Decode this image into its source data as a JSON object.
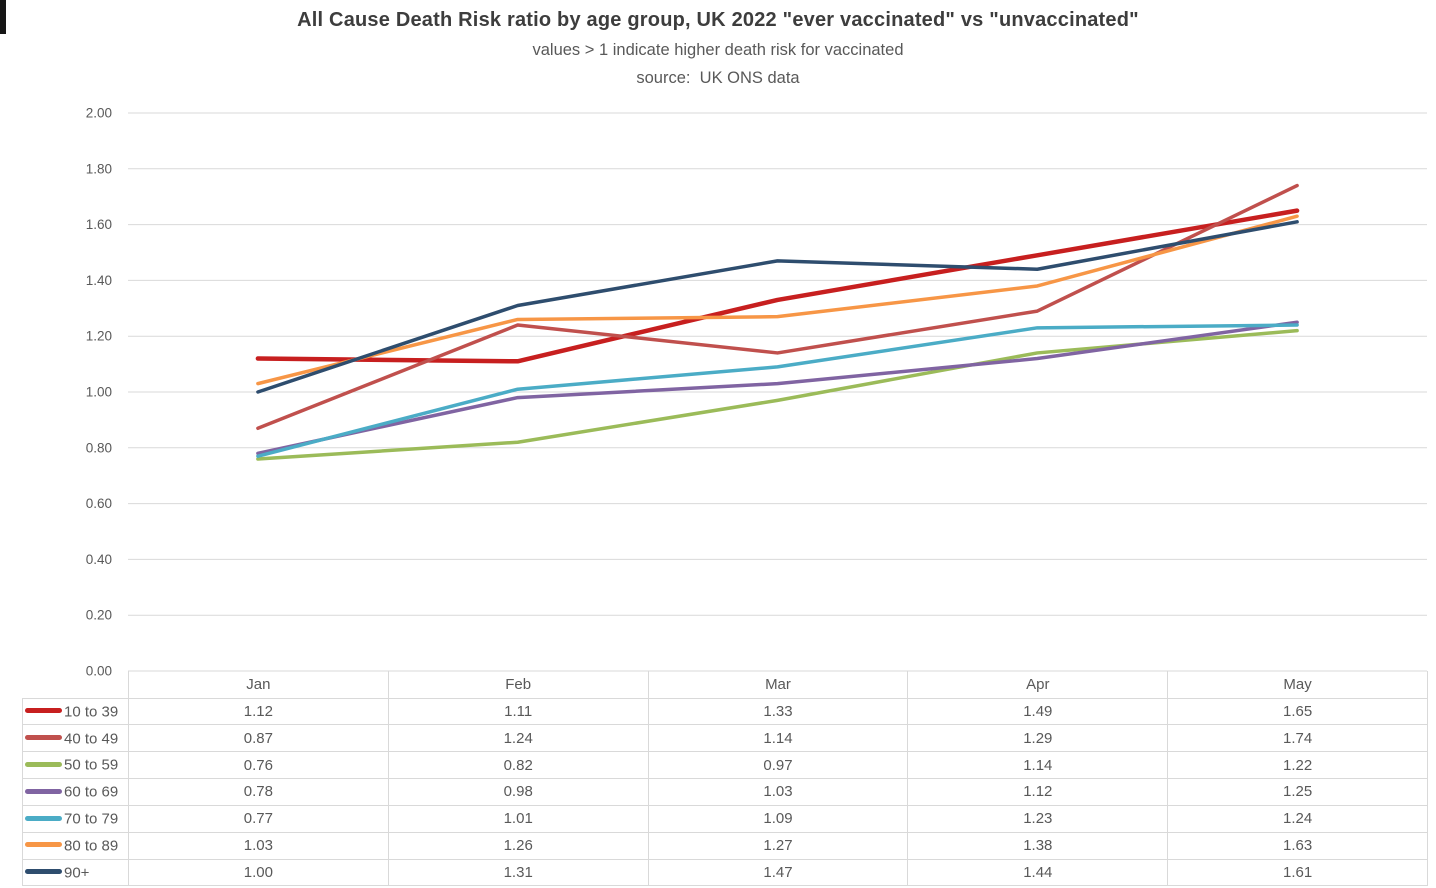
{
  "page": {
    "title": "All Cause Death Risk ratio by age group, UK 2022 \"ever vaccinated\" vs \"unvaccinated\"",
    "subtitle": "values > 1 indicate higher death risk for vaccinated",
    "source": "source:  UK ONS data"
  },
  "chart_data": {
    "type": "line",
    "title": "All Cause Death Risk ratio by age group, UK 2022 \"ever vaccinated\" vs \"unvaccinated\"",
    "subtitle": "values > 1 indicate higher death risk for vaccinated",
    "source_note": "source:  UK ONS data",
    "xlabel": "",
    "ylabel": "",
    "categories": [
      "Jan",
      "Feb",
      "Mar",
      "Apr",
      "May"
    ],
    "series": [
      {
        "name": "10 to 39",
        "color": "#c71f1f",
        "emphasized": true,
        "values": [
          1.12,
          1.11,
          1.33,
          1.49,
          1.65
        ]
      },
      {
        "name": "40 to 49",
        "color": "#c0504d",
        "emphasized": false,
        "values": [
          0.87,
          1.24,
          1.14,
          1.29,
          1.74
        ]
      },
      {
        "name": "50 to 59",
        "color": "#9bbb59",
        "emphasized": false,
        "values": [
          0.76,
          0.82,
          0.97,
          1.14,
          1.22
        ]
      },
      {
        "name": "60 to 69",
        "color": "#8064a2",
        "emphasized": false,
        "values": [
          0.78,
          0.98,
          1.03,
          1.12,
          1.25
        ]
      },
      {
        "name": "70 to 79",
        "color": "#4bacc6",
        "emphasized": false,
        "values": [
          0.77,
          1.01,
          1.09,
          1.23,
          1.24
        ]
      },
      {
        "name": "80 to 89",
        "color": "#f79646",
        "emphasized": false,
        "values": [
          1.03,
          1.26,
          1.27,
          1.38,
          1.63
        ]
      },
      {
        "name": "90+",
        "color": "#2e4d6e",
        "emphasized": false,
        "values": [
          1.0,
          1.31,
          1.47,
          1.44,
          1.61
        ]
      }
    ],
    "ylim": [
      0,
      2
    ],
    "ytick_step": 0.2,
    "value_decimals": 2,
    "grid": true,
    "legend_position": "table-left"
  },
  "colors": {
    "grid": "#d9d9d9",
    "table_border": "#d9d9d9",
    "axis_text": "#595959",
    "table_text": "#595959",
    "title_text": "#3d3d3d"
  }
}
